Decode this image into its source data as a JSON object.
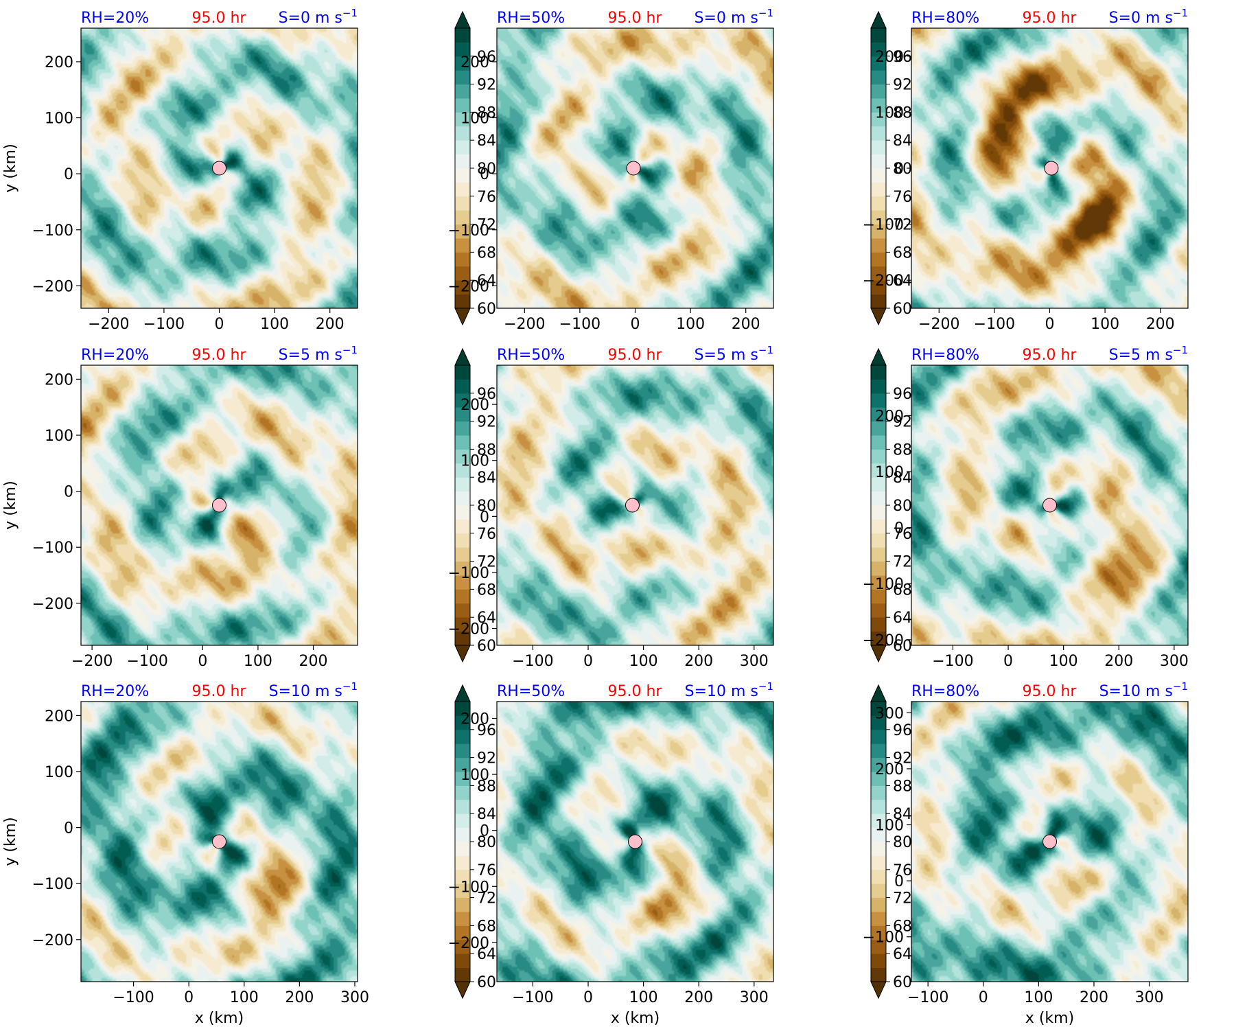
{
  "colors": {
    "rh_title": "#0000ff",
    "time_title": "#ff0000",
    "shear_title": "#0000ff",
    "center_marker": "#ffc0cb",
    "colormap": [
      "#543005",
      "#8c510a",
      "#bf812d",
      "#dfc27d",
      "#f6e8c3",
      "#f5f5f5",
      "#c7eae5",
      "#80cdc1",
      "#35978f",
      "#01665e",
      "#003c30"
    ]
  },
  "colorbar": {
    "ticks": [
      "96",
      "92",
      "88",
      "84",
      "80",
      "76",
      "72",
      "68",
      "64",
      "60"
    ],
    "min": 60,
    "max": 100,
    "extend": "both"
  },
  "chart_data": [
    {
      "type": "heatmap",
      "rh_label": "RH=20%",
      "time_label": "95.0 hr",
      "shear_label": "S=0 m s",
      "shear_unit_sup": "−1",
      "xlabel": "",
      "ylabel": "y (km)",
      "xlim": [
        -250,
        250
      ],
      "ylim": [
        -240,
        260
      ],
      "xticks": [
        "−200",
        "−100",
        "0",
        "100",
        "200"
      ],
      "yticks": [
        "200",
        "100",
        "0",
        "−100",
        "−200"
      ],
      "center": [
        0,
        10
      ]
    },
    {
      "type": "heatmap",
      "rh_label": "RH=50%",
      "time_label": "95.0 hr",
      "shear_label": "S=0 m s",
      "shear_unit_sup": "−1",
      "xlabel": "",
      "ylabel": "",
      "xlim": [
        -250,
        250
      ],
      "ylim": [
        -240,
        260
      ],
      "xticks": [
        "−200",
        "−100",
        "0",
        "100",
        "200"
      ],
      "yticks": [
        "200",
        "100",
        "0",
        "−100",
        "−200"
      ],
      "center": [
        -3,
        10
      ]
    },
    {
      "type": "heatmap",
      "rh_label": "RH=80%",
      "time_label": "95.0 hr",
      "shear_label": "S=0 m s",
      "shear_unit_sup": "−1",
      "xlabel": "",
      "ylabel": "",
      "xlim": [
        -250,
        250
      ],
      "ylim": [
        -250,
        250
      ],
      "xticks": [
        "−200",
        "−100",
        "0",
        "100",
        "200"
      ],
      "yticks": [
        "200",
        "100",
        "0",
        "−100",
        "−200"
      ],
      "center": [
        3,
        0
      ]
    },
    {
      "type": "heatmap",
      "rh_label": "RH=20%",
      "time_label": "95.0 hr",
      "shear_label": "S=5 m s",
      "shear_unit_sup": "−1",
      "xlabel": "",
      "ylabel": "y (km)",
      "xlim": [
        -220,
        280
      ],
      "ylim": [
        -275,
        225
      ],
      "xticks": [
        "−200",
        "−100",
        "0",
        "100",
        "200"
      ],
      "yticks": [
        "200",
        "100",
        "0",
        "−100",
        "−200"
      ],
      "center": [
        30,
        -25
      ]
    },
    {
      "type": "heatmap",
      "rh_label": "RH=50%",
      "time_label": "95.0 hr",
      "shear_label": "S=5 m s",
      "shear_unit_sup": "−1",
      "xlabel": "",
      "ylabel": "",
      "xlim": [
        -165,
        335
      ],
      "ylim": [
        -230,
        270
      ],
      "xticks": [
        "−100",
        "0",
        "100",
        "200",
        "300"
      ],
      "yticks": [
        "200",
        "100",
        "0",
        "−100",
        "−200"
      ],
      "center": [
        80,
        20
      ]
    },
    {
      "type": "heatmap",
      "rh_label": "RH=80%",
      "time_label": "95.0 hr",
      "shear_label": "S=5 m s",
      "shear_unit_sup": "−1",
      "xlabel": "",
      "ylabel": "",
      "xlim": [
        -175,
        325
      ],
      "ylim": [
        -210,
        290
      ],
      "xticks": [
        "−100",
        "0",
        "100",
        "200",
        "300"
      ],
      "yticks": [
        "200",
        "100",
        "0",
        "−100",
        "−200"
      ],
      "center": [
        75,
        40
      ]
    },
    {
      "type": "heatmap",
      "rh_label": "RH=20%",
      "time_label": "95.0 hr",
      "shear_label": "S=10 m s",
      "shear_unit_sup": "−1",
      "xlabel": "x (km)",
      "ylabel": "y (km)",
      "xlim": [
        -195,
        305
      ],
      "ylim": [
        -275,
        225
      ],
      "xticks": [
        "−100",
        "0",
        "100",
        "200",
        "300"
      ],
      "yticks": [
        "200",
        "100",
        "0",
        "−100",
        "−200"
      ],
      "center": [
        55,
        -25
      ]
    },
    {
      "type": "heatmap",
      "rh_label": "RH=50%",
      "time_label": "95.0 hr",
      "shear_label": "S=10 m s",
      "shear_unit_sup": "−1",
      "xlabel": "x (km)",
      "ylabel": "",
      "xlim": [
        -165,
        335
      ],
      "ylim": [
        -270,
        230
      ],
      "xticks": [
        "−100",
        "0",
        "100",
        "200",
        "300"
      ],
      "yticks": [
        "200",
        "100",
        "0",
        "−100",
        "−200"
      ],
      "center": [
        85,
        -20
      ]
    },
    {
      "type": "heatmap",
      "rh_label": "RH=80%",
      "time_label": "95.0 hr",
      "shear_label": "S=10 m s",
      "shear_unit_sup": "−1",
      "xlabel": "x (km)",
      "ylabel": "",
      "xlim": [
        -130,
        370
      ],
      "ylim": [
        -180,
        320
      ],
      "xticks": [
        "−100",
        "0",
        "100",
        "200",
        "300"
      ],
      "yticks": [
        "300",
        "200",
        "100",
        "0",
        "−100"
      ],
      "center": [
        120,
        70
      ]
    }
  ]
}
